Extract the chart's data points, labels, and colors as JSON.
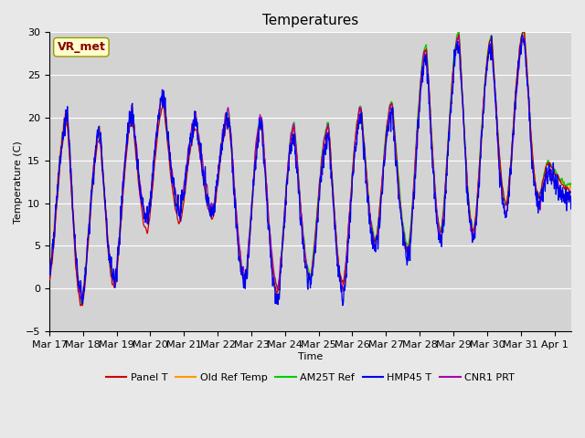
{
  "title": "Temperatures",
  "xlabel": "Time",
  "ylabel": "Temperature (C)",
  "ylim": [
    -5,
    30
  ],
  "xlim_days": [
    0,
    15.5
  ],
  "x_tick_labels": [
    "Mar 17",
    "Mar 18",
    "Mar 19",
    "Mar 20",
    "Mar 21",
    "Mar 22",
    "Mar 23",
    "Mar 24",
    "Mar 25",
    "Mar 26",
    "Mar 27",
    "Mar 28",
    "Mar 29",
    "Mar 30",
    "Mar 31",
    "Apr 1"
  ],
  "line_colors": {
    "Panel T": "#cc0000",
    "Old Ref Temp": "#ff9900",
    "AM25T Ref": "#00cc00",
    "HMP45 T": "#0000ee",
    "CNR1 PRT": "#aa00aa"
  },
  "bg_color": "#e8e8e8",
  "plot_bg_color": "#d3d3d3",
  "annotation_text": "VR_met",
  "annotation_color": "#880000",
  "annotation_bg": "#ffffcc",
  "grid_color": "#ffffff",
  "title_fontsize": 11,
  "label_fontsize": 8,
  "tick_fontsize": 8,
  "legend_fontsize": 8
}
